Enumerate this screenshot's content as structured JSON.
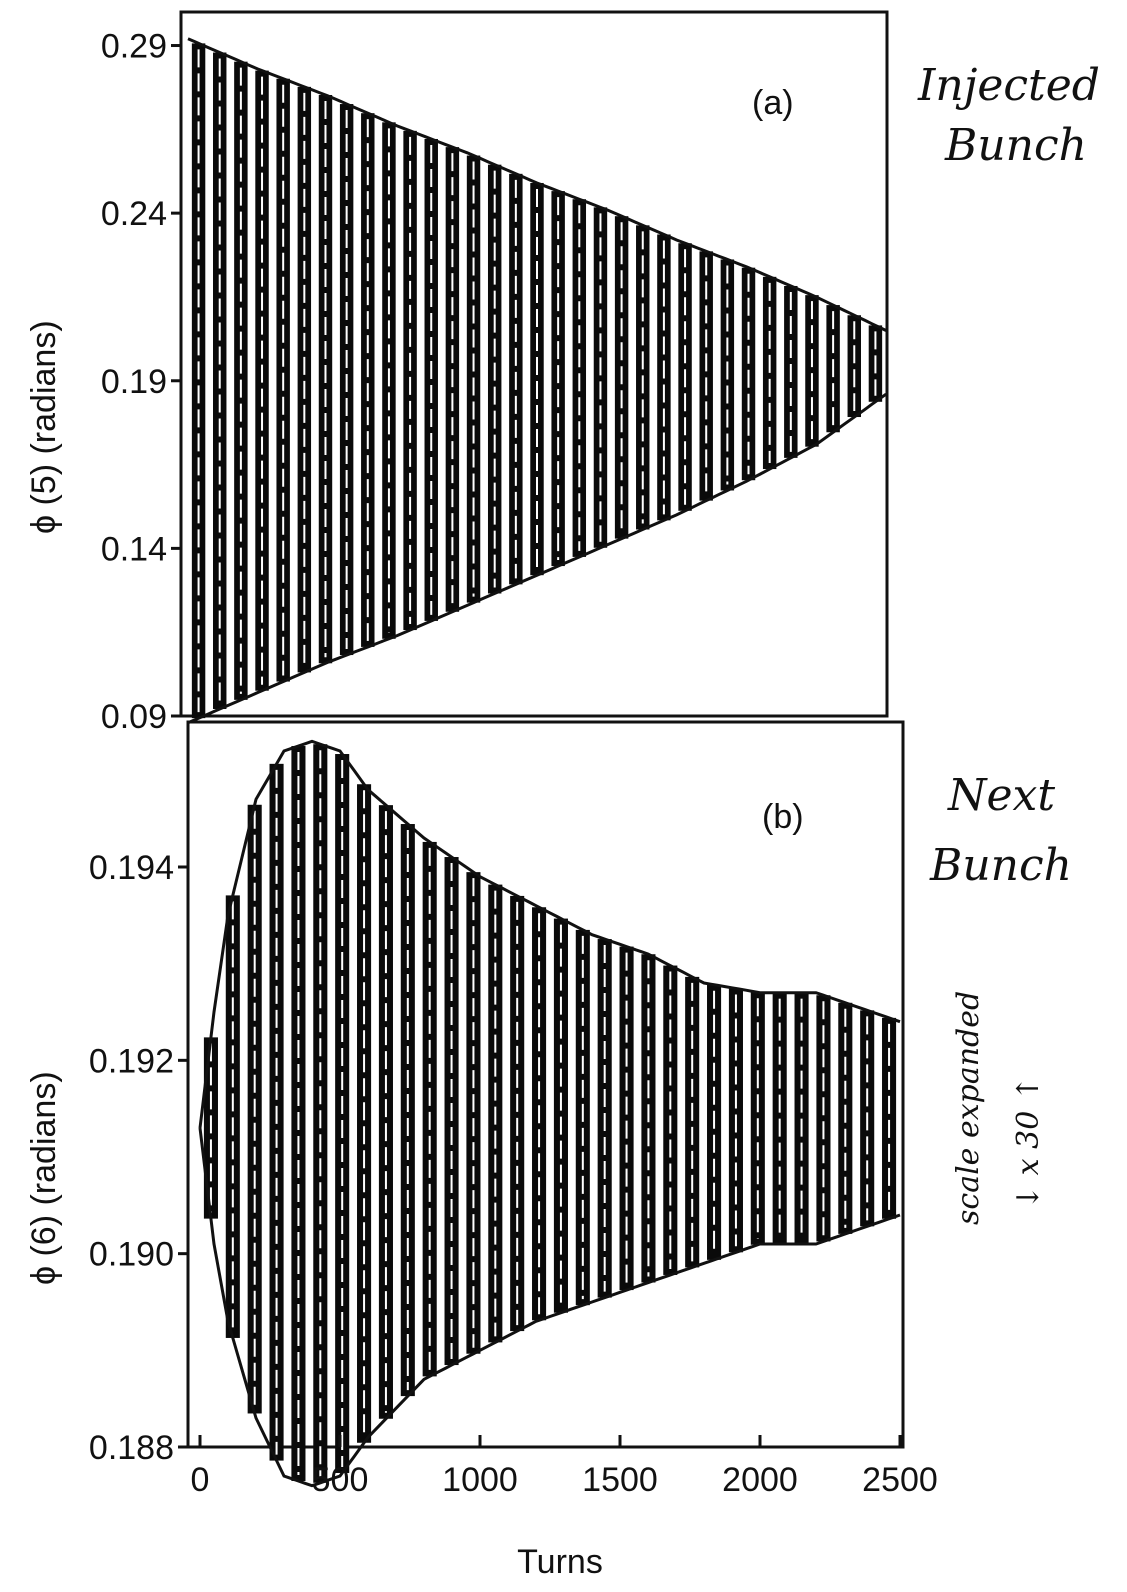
{
  "chart_data": [
    {
      "type": "line",
      "panel_label": "(a)",
      "annotation": [
        "Injected",
        "Bunch"
      ],
      "ylabel": "ϕ (5)     (radians)",
      "xlim": [
        0,
        2500
      ],
      "ylim": [
        0.09,
        0.3
      ],
      "yticks": [
        0.09,
        0.14,
        0.19,
        0.24,
        0.29
      ],
      "ytick_labels": [
        "0.09",
        "0.14",
        "0.19",
        "0.24",
        "0.29"
      ],
      "series": [
        {
          "values_description": "oscillation envelope",
          "x": [
            0,
            250,
            500,
            750,
            1000,
            1250,
            1500,
            1750,
            2000,
            2250,
            2500
          ],
          "upper": [
            0.292,
            0.283,
            0.275,
            0.266,
            0.258,
            0.249,
            0.241,
            0.232,
            0.224,
            0.215,
            0.205
          ],
          "lower": [
            0.088,
            0.097,
            0.106,
            0.114,
            0.123,
            0.132,
            0.141,
            0.15,
            0.16,
            0.171,
            0.186
          ],
          "centre": 0.19
        }
      ]
    },
    {
      "type": "line",
      "panel_label": "(b)",
      "annotation": [
        "Next",
        "Bunch"
      ],
      "ylabel": "ϕ (6)     (radians)",
      "side_note": [
        "scale expanded",
        "↓  x 30  ↑"
      ],
      "xlabel": "Turns",
      "xlim": [
        0,
        2500
      ],
      "ylim": [
        0.188,
        0.1955
      ],
      "xticks": [
        0,
        500,
        1000,
        1500,
        2000,
        2500
      ],
      "xtick_labels": [
        "0",
        "500",
        "1000",
        "1500",
        "2000",
        "2500"
      ],
      "yticks": [
        0.188,
        0.19,
        0.192,
        0.194
      ],
      "ytick_labels": [
        "0.188",
        "0.190",
        "0.192",
        "0.194"
      ],
      "series": [
        {
          "values_description": "oscillation envelope",
          "x": [
            0,
            50,
            100,
            200,
            300,
            400,
            500,
            600,
            800,
            1000,
            1200,
            1400,
            1600,
            1800,
            2000,
            2200,
            2400,
            2500
          ],
          "upper": [
            0.1913,
            0.1925,
            0.1935,
            0.1947,
            0.1952,
            0.1953,
            0.1952,
            0.1948,
            0.1943,
            0.1939,
            0.1936,
            0.1933,
            0.1931,
            0.1928,
            0.1927,
            0.1927,
            0.1925,
            0.1924
          ],
          "lower": [
            0.1913,
            0.1901,
            0.1893,
            0.1883,
            0.1877,
            0.1876,
            0.1877,
            0.1881,
            0.1887,
            0.189,
            0.1893,
            0.1895,
            0.1897,
            0.1899,
            0.1901,
            0.1901,
            0.1903,
            0.1904
          ],
          "centre": 0.1913
        }
      ]
    }
  ]
}
